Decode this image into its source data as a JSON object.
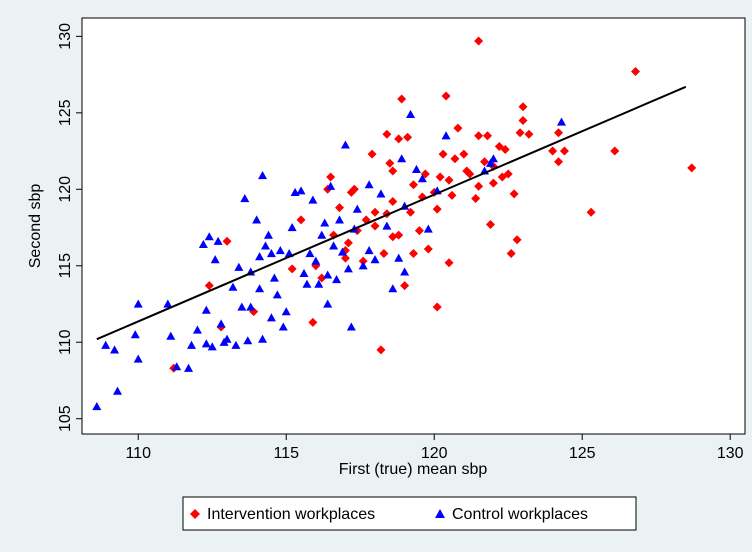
{
  "chart_data": {
    "type": "scatter",
    "x_label": "First (true) mean sbp",
    "y_label": "Second sbp",
    "xlim": [
      108.1,
      130.5
    ],
    "ylim": [
      104,
      131.2
    ],
    "xticks": [
      110,
      115,
      120,
      125,
      130
    ],
    "yticks": [
      105,
      110,
      115,
      120,
      125,
      130
    ],
    "fit_line": {
      "color": "#000000",
      "x": [
        108.6,
        128.5
      ],
      "y": [
        110.2,
        126.7
      ]
    },
    "series": [
      {
        "name": "Intervention workplaces",
        "color": "#ff0000",
        "marker": "diamond",
        "x": [
          111.2,
          112.4,
          112.8,
          113,
          113.9,
          115.2,
          115.5,
          115.9,
          116,
          116.4,
          116.5,
          116.6,
          116.8,
          117,
          117,
          117.2,
          117.3,
          117.4,
          117.6,
          117.7,
          117.9,
          118,
          118,
          118.2,
          118.3,
          118.4,
          118.4,
          118.5,
          118.6,
          118.6,
          118.8,
          118.8,
          118.9,
          119,
          119.1,
          119.2,
          119.3,
          119.5,
          119.6,
          119.7,
          119.8,
          120.1,
          120.1,
          120.2,
          120.3,
          120.4,
          120.5,
          120.5,
          120.6,
          120.7,
          120.8,
          121,
          121.1,
          121.4,
          121.5,
          121.5,
          121.5,
          121.7,
          121.8,
          121.9,
          122,
          122,
          122.2,
          122.3,
          122.4,
          122.5,
          122.6,
          122.7,
          122.8,
          122.9,
          123,
          123,
          123.2,
          124,
          124.2,
          124.2,
          124.4,
          125.3,
          126.1,
          126.8,
          128.7,
          116.2,
          119.3,
          120,
          121.2,
          117.1,
          118.6
        ],
        "y": [
          108.3,
          113.7,
          111,
          116.6,
          112,
          114.8,
          118,
          111.3,
          115,
          120,
          120.8,
          117,
          118.8,
          116,
          115.5,
          119.8,
          120,
          117.3,
          115.3,
          118,
          122.3,
          118.5,
          117.6,
          109.5,
          115.8,
          123.6,
          118.4,
          121.7,
          121.2,
          116.9,
          117,
          123.3,
          125.9,
          113.7,
          123.4,
          118.5,
          120.3,
          117.3,
          119.5,
          121,
          116.1,
          118.7,
          112.3,
          120.8,
          122.3,
          126.1,
          120.6,
          115.2,
          119.6,
          122,
          124,
          122.3,
          121.2,
          119.4,
          120.2,
          123.5,
          129.7,
          121.8,
          123.5,
          117.7,
          120.4,
          121.5,
          122.8,
          120.8,
          122.6,
          121,
          115.8,
          119.7,
          116.7,
          123.7,
          125.4,
          124.5,
          123.6,
          122.5,
          121.8,
          123.7,
          122.5,
          118.5,
          122.5,
          127.7,
          121.4,
          114.2,
          115.8,
          119.8,
          121,
          116.5,
          119.2
        ]
      },
      {
        "name": "Control workplaces",
        "color": "#0000ff",
        "marker": "triangle",
        "x": [
          108.6,
          108.9,
          109.2,
          109.3,
          109.9,
          110,
          110,
          111,
          111.1,
          111.3,
          111.7,
          111.8,
          112,
          112.2,
          112.3,
          112.4,
          112.5,
          112.6,
          112.7,
          112.8,
          112.9,
          113,
          113.2,
          113.3,
          113.4,
          113.5,
          113.6,
          113.7,
          113.8,
          114,
          114.1,
          114.1,
          114.2,
          114.3,
          114.4,
          114.5,
          114.6,
          114.7,
          114.8,
          114.9,
          115,
          115.1,
          115.2,
          115.3,
          115.5,
          115.7,
          115.8,
          115.9,
          116,
          116.1,
          116.2,
          116.3,
          116.4,
          116.5,
          116.6,
          116.7,
          116.8,
          116.9,
          117,
          117.1,
          117.2,
          117.3,
          117.4,
          117.6,
          117.8,
          118,
          118.2,
          118.4,
          118.6,
          118.8,
          118.9,
          119,
          119.2,
          119.4,
          119.6,
          119.8,
          120.1,
          120.4,
          121.7,
          121.9,
          122,
          124.3,
          114.2,
          113.8,
          115.6,
          116.4,
          117.8,
          119,
          112.3,
          114.5
        ],
        "y": [
          105.8,
          109.8,
          109.5,
          106.8,
          110.5,
          108.9,
          112.5,
          112.5,
          110.4,
          108.4,
          108.3,
          109.8,
          110.8,
          116.4,
          112.1,
          116.9,
          109.7,
          115.4,
          116.6,
          111.2,
          110,
          110.2,
          113.6,
          109.8,
          114.9,
          112.3,
          119.4,
          110.1,
          112.3,
          118,
          115.6,
          113.5,
          120.9,
          116.3,
          117,
          115.8,
          114.2,
          113.1,
          116,
          111,
          112,
          115.8,
          117.5,
          119.8,
          119.9,
          113.8,
          115.8,
          119.3,
          115.3,
          113.8,
          117,
          117.8,
          114.4,
          120.2,
          116.3,
          114.1,
          118,
          115.9,
          122.9,
          114.8,
          111,
          117.4,
          118.7,
          115,
          120.3,
          115.4,
          119.7,
          117.6,
          113.5,
          115.5,
          122,
          118.9,
          124.9,
          121.3,
          120.7,
          117.4,
          119.9,
          123.5,
          121.2,
          121.7,
          122,
          124.4,
          110.2,
          114.6,
          114.5,
          112.5,
          116,
          114.6,
          109.9,
          111.6
        ]
      }
    ]
  }
}
